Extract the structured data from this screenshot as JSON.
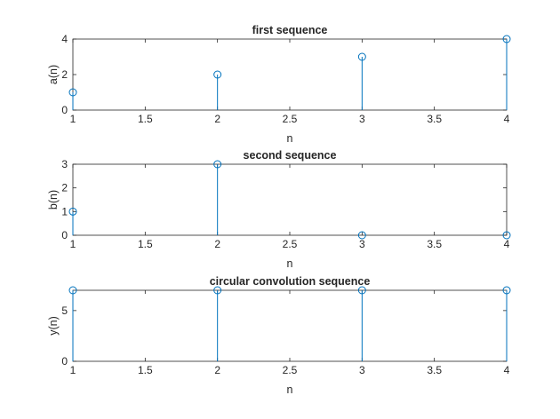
{
  "chart_data": [
    {
      "type": "stem",
      "title": "first sequence",
      "xlabel": "n",
      "ylabel": "a(n)",
      "x": [
        1,
        2,
        3,
        4
      ],
      "y": [
        1,
        2,
        3,
        4
      ],
      "xlim": [
        1,
        4
      ],
      "ylim": [
        0,
        4
      ],
      "xticks": [
        "1",
        "1.5",
        "2",
        "2.5",
        "3",
        "3.5",
        "4"
      ],
      "yticks": [
        "0",
        "2",
        "4"
      ],
      "grid": false,
      "color": "#0072BD"
    },
    {
      "type": "stem",
      "title": "second sequence",
      "xlabel": "n",
      "ylabel": "b(n)",
      "x": [
        1,
        2,
        3,
        4
      ],
      "y": [
        1,
        3,
        0,
        0
      ],
      "xlim": [
        1,
        4
      ],
      "ylim": [
        0,
        3
      ],
      "xticks": [
        "1",
        "1.5",
        "2",
        "2.5",
        "3",
        "3.5",
        "4"
      ],
      "yticks": [
        "0",
        "1",
        "2",
        "3"
      ],
      "grid": false,
      "color": "#0072BD"
    },
    {
      "type": "stem",
      "title": "circular convolution sequence",
      "xlabel": "n",
      "ylabel": "y(n)",
      "x": [
        1,
        2,
        3,
        4
      ],
      "y": [
        7,
        7,
        7,
        7
      ],
      "xlim": [
        1,
        4
      ],
      "ylim": [
        0,
        7
      ],
      "xticks": [
        "1",
        "1.5",
        "2",
        "2.5",
        "3",
        "3.5",
        "4"
      ],
      "yticks": [
        "0",
        "5"
      ],
      "grid": false,
      "color": "#0072BD"
    }
  ]
}
